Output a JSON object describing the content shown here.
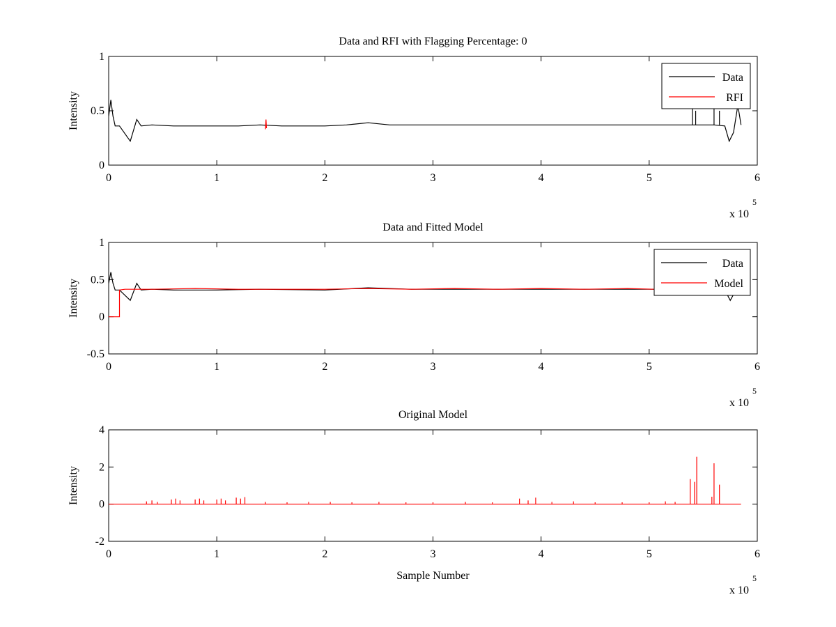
{
  "chart_data": [
    {
      "type": "line",
      "title": "Data and RFI with Flagging Percentage: 0",
      "xlabel": "",
      "ylabel": "Intensity",
      "xlim": [
        0,
        600000
      ],
      "ylim": [
        0,
        1
      ],
      "xticks": [
        0,
        1,
        2,
        3,
        4,
        5,
        6
      ],
      "yticks": [
        0,
        0.5,
        1
      ],
      "x_exponent_base": "x 10",
      "x_exponent_power": "5",
      "legend": {
        "position": "top-right",
        "entries": [
          "Data",
          "RFI"
        ]
      },
      "colors": {
        "Data": "#000000",
        "RFI": "#ff0000"
      },
      "series": [
        {
          "name": "Data",
          "color": "#000000",
          "x": [
            0,
            2000,
            4000,
            6000,
            10000,
            20000,
            26000,
            30000,
            40000,
            60000,
            80000,
            100000,
            120000,
            140000,
            160000,
            180000,
            200000,
            220000,
            240000,
            260000,
            280000,
            300000,
            340000,
            380000,
            420000,
            460000,
            500000,
            540000,
            560000,
            570000,
            574000,
            578000,
            582000,
            585000
          ],
          "y": [
            0.45,
            0.6,
            0.45,
            0.36,
            0.36,
            0.22,
            0.42,
            0.36,
            0.37,
            0.36,
            0.36,
            0.36,
            0.36,
            0.37,
            0.36,
            0.36,
            0.36,
            0.37,
            0.39,
            0.37,
            0.37,
            0.37,
            0.37,
            0.37,
            0.37,
            0.37,
            0.37,
            0.37,
            0.37,
            0.36,
            0.22,
            0.3,
            0.55,
            0.37
          ],
          "spikes": [
            {
              "x": 540000,
              "y": 0.55
            },
            {
              "x": 543000,
              "y": 0.5
            },
            {
              "x": 560000,
              "y": 0.55
            },
            {
              "x": 565000,
              "y": 0.5
            }
          ]
        },
        {
          "name": "RFI",
          "color": "#ff0000",
          "x": [
            145000,
            145500,
            146000
          ],
          "y": [
            0.33,
            0.42,
            0.34
          ]
        }
      ]
    },
    {
      "type": "line",
      "title": "Data and Fitted Model",
      "xlabel": "",
      "ylabel": "Intensity",
      "xlim": [
        0,
        600000
      ],
      "ylim": [
        -0.5,
        1
      ],
      "xticks": [
        0,
        1,
        2,
        3,
        4,
        5,
        6
      ],
      "yticks": [
        -0.5,
        0,
        0.5,
        1
      ],
      "x_exponent_base": "x 10",
      "x_exponent_power": "5",
      "legend": {
        "position": "top-right",
        "entries": [
          "Data",
          "Model"
        ]
      },
      "colors": {
        "Data": "#000000",
        "Model": "#ff0000"
      },
      "series": [
        {
          "name": "Data",
          "color": "#000000",
          "x": [
            0,
            2000,
            4000,
            6000,
            10000,
            20000,
            26000,
            30000,
            40000,
            60000,
            100000,
            140000,
            200000,
            240000,
            280000,
            340000,
            420000,
            500000,
            560000,
            570000,
            575000,
            578000
          ],
          "y": [
            0.45,
            0.6,
            0.45,
            0.36,
            0.36,
            0.22,
            0.45,
            0.36,
            0.37,
            0.36,
            0.36,
            0.37,
            0.36,
            0.39,
            0.37,
            0.37,
            0.37,
            0.37,
            0.37,
            0.36,
            0.22,
            0.3
          ]
        },
        {
          "name": "Model",
          "color": "#ff0000",
          "x": [
            0,
            10000,
            10000,
            15000,
            40000,
            80000,
            120000,
            160000,
            200000,
            240000,
            280000,
            320000,
            360000,
            400000,
            440000,
            480000,
            505000
          ],
          "y": [
            0,
            0,
            0.36,
            0.37,
            0.37,
            0.38,
            0.37,
            0.37,
            0.37,
            0.38,
            0.37,
            0.38,
            0.37,
            0.38,
            0.37,
            0.38,
            0.37
          ]
        }
      ]
    },
    {
      "type": "line",
      "title": "Original Model",
      "xlabel": "Sample Number",
      "ylabel": "Intensity",
      "xlim": [
        0,
        600000
      ],
      "ylim": [
        -2,
        4
      ],
      "xticks": [
        0,
        1,
        2,
        3,
        4,
        5,
        6
      ],
      "yticks": [
        -2,
        0,
        2,
        4
      ],
      "x_exponent_base": "x 10",
      "x_exponent_power": "5",
      "colors": {
        "Model": "#ff0000"
      },
      "series": [
        {
          "color": "#ff0000",
          "x": [
            0,
            585000
          ],
          "y": [
            0,
            0
          ],
          "spikes": [
            {
              "x": 35000,
              "y": 0.15
            },
            {
              "x": 40000,
              "y": 0.2
            },
            {
              "x": 45000,
              "y": 0.12
            },
            {
              "x": 58000,
              "y": 0.25
            },
            {
              "x": 62000,
              "y": 0.3
            },
            {
              "x": 66000,
              "y": 0.2
            },
            {
              "x": 80000,
              "y": 0.25
            },
            {
              "x": 84000,
              "y": 0.3
            },
            {
              "x": 88000,
              "y": 0.2
            },
            {
              "x": 100000,
              "y": 0.25
            },
            {
              "x": 104000,
              "y": 0.3
            },
            {
              "x": 108000,
              "y": 0.2
            },
            {
              "x": 118000,
              "y": 0.35
            },
            {
              "x": 122000,
              "y": 0.3
            },
            {
              "x": 126000,
              "y": 0.38
            },
            {
              "x": 145000,
              "y": 0.12
            },
            {
              "x": 165000,
              "y": 0.1
            },
            {
              "x": 185000,
              "y": 0.12
            },
            {
              "x": 205000,
              "y": 0.12
            },
            {
              "x": 225000,
              "y": 0.1
            },
            {
              "x": 250000,
              "y": 0.12
            },
            {
              "x": 275000,
              "y": 0.1
            },
            {
              "x": 300000,
              "y": 0.1
            },
            {
              "x": 330000,
              "y": 0.12
            },
            {
              "x": 355000,
              "y": 0.1
            },
            {
              "x": 380000,
              "y": 0.3
            },
            {
              "x": 388000,
              "y": 0.2
            },
            {
              "x": 395000,
              "y": 0.35
            },
            {
              "x": 410000,
              "y": 0.12
            },
            {
              "x": 430000,
              "y": 0.15
            },
            {
              "x": 450000,
              "y": 0.1
            },
            {
              "x": 475000,
              "y": 0.1
            },
            {
              "x": 500000,
              "y": 0.1
            },
            {
              "x": 515000,
              "y": 0.15
            },
            {
              "x": 524000,
              "y": 0.12
            },
            {
              "x": 538000,
              "y": 1.35
            },
            {
              "x": 542000,
              "y": 1.2
            },
            {
              "x": 544000,
              "y": 2.55
            },
            {
              "x": 558000,
              "y": 0.4
            },
            {
              "x": 560000,
              "y": 2.2
            },
            {
              "x": 565000,
              "y": 1.05
            }
          ]
        }
      ]
    }
  ]
}
